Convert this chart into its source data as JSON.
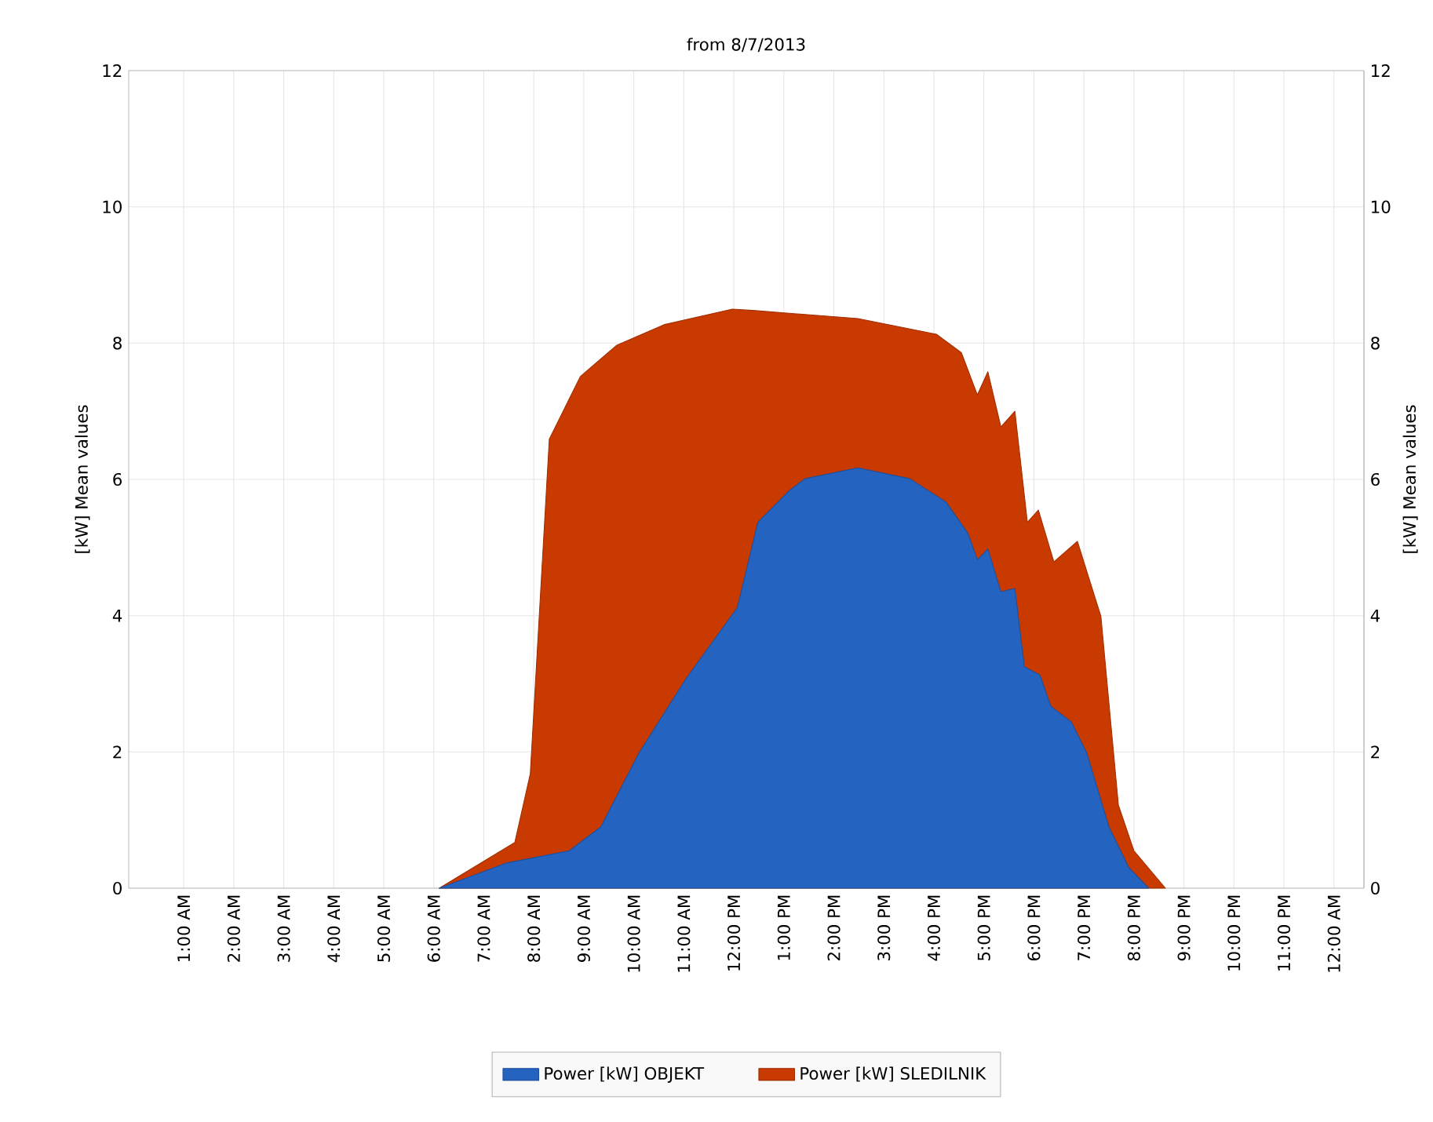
{
  "chart_data": {
    "type": "area",
    "title": "from 8/7/2013",
    "ylabel": "[kW] Mean values",
    "y2label": "[kW] Mean values",
    "xlim": [
      -0.1,
      24.6
    ],
    "ylim": [
      0,
      12
    ],
    "yticks": [
      0,
      2,
      4,
      6,
      8,
      10,
      12
    ],
    "y2lim": [
      0,
      12
    ],
    "y2ticks": [
      0,
      2,
      4,
      6,
      8,
      10,
      12
    ],
    "xticks": [
      {
        "value": 1,
        "label": "1:00 AM"
      },
      {
        "value": 2,
        "label": "2:00 AM"
      },
      {
        "value": 3,
        "label": "3:00 AM"
      },
      {
        "value": 4,
        "label": "4:00 AM"
      },
      {
        "value": 5,
        "label": "5:00 AM"
      },
      {
        "value": 6,
        "label": "6:00 AM"
      },
      {
        "value": 7,
        "label": "7:00 AM"
      },
      {
        "value": 8,
        "label": "8:00 AM"
      },
      {
        "value": 9,
        "label": "9:00 AM"
      },
      {
        "value": 10,
        "label": "10:00 AM"
      },
      {
        "value": 11,
        "label": "11:00 AM"
      },
      {
        "value": 12,
        "label": "12:00 PM"
      },
      {
        "value": 13,
        "label": "1:00 PM"
      },
      {
        "value": 14,
        "label": "2:00 PM"
      },
      {
        "value": 15,
        "label": "3:00 PM"
      },
      {
        "value": 16,
        "label": "4:00 PM"
      },
      {
        "value": 17,
        "label": "5:00 PM"
      },
      {
        "value": 18,
        "label": "6:00 PM"
      },
      {
        "value": 19,
        "label": "7:00 PM"
      },
      {
        "value": 20,
        "label": "8:00 PM"
      },
      {
        "value": 21,
        "label": "9:00 PM"
      },
      {
        "value": 22,
        "label": "10:00 PM"
      },
      {
        "value": 23,
        "label": "11:00 PM"
      },
      {
        "value": 24,
        "label": "12:00 AM"
      }
    ],
    "grid": true,
    "legend": "bottom",
    "series": [
      {
        "name": "Power [kW] SLEDILNIK",
        "color": "#c83a00",
        "x": [
          6.11,
          7.62,
          7.93,
          8.31,
          8.93,
          9.66,
          10.6,
          11.97,
          12.38,
          14.48,
          16.05,
          16.55,
          16.87,
          17.08,
          17.34,
          17.62,
          17.87,
          18.09,
          18.4,
          18.87,
          19.34,
          19.69,
          20.0,
          20.63
        ],
        "values": [
          0,
          0.67,
          1.68,
          6.59,
          7.51,
          7.97,
          8.27,
          8.5,
          8.48,
          8.36,
          8.13,
          7.86,
          7.24,
          7.58,
          6.77,
          7.0,
          5.37,
          5.55,
          4.79,
          5.09,
          3.99,
          1.22,
          0.55,
          0
        ]
      },
      {
        "name": "Power [kW] OBJEKT",
        "color": "#2563c0",
        "x": [
          6.11,
          7.46,
          8.71,
          9.34,
          10.1,
          11.03,
          12.07,
          12.48,
          13.1,
          13.42,
          14.48,
          15.52,
          16.24,
          16.68,
          16.87,
          17.08,
          17.34,
          17.62,
          17.81,
          18.12,
          18.34,
          18.75,
          19.06,
          19.5,
          19.9,
          20.3
        ],
        "values": [
          0,
          0.37,
          0.55,
          0.9,
          1.98,
          3.06,
          4.12,
          5.37,
          5.83,
          6.01,
          6.17,
          6.01,
          5.67,
          5.21,
          4.82,
          4.98,
          4.35,
          4.4,
          3.25,
          3.13,
          2.67,
          2.44,
          1.98,
          0.9,
          0.3,
          0
        ]
      }
    ]
  }
}
